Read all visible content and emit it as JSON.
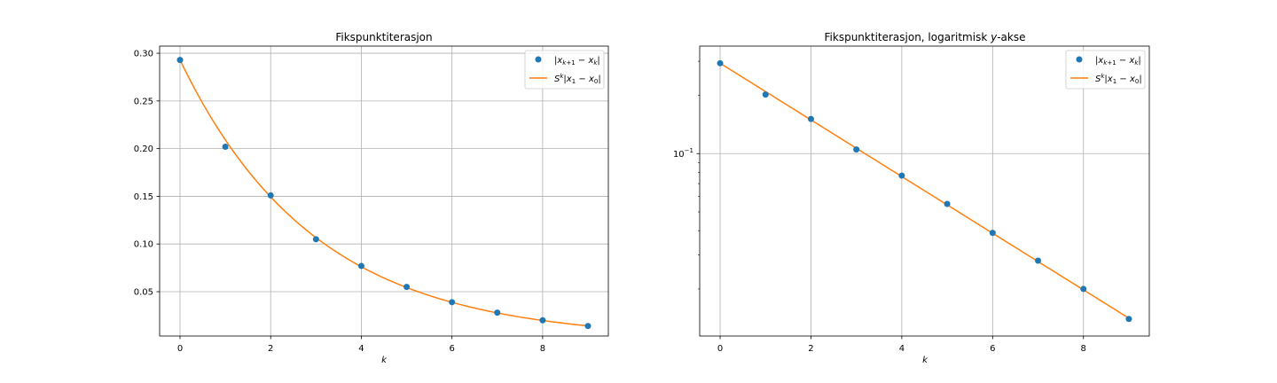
{
  "chart_data": [
    {
      "type": "line",
      "title": "Fikspunktiterasjon",
      "xlabel": "k",
      "ylabel": "",
      "yscale": "linear",
      "xlim": [
        -0.45,
        9.45
      ],
      "ylim": [
        0.0035,
        0.3075
      ],
      "xticks": [
        0,
        2,
        4,
        6,
        8
      ],
      "yticks": [
        0.05,
        0.1,
        0.15,
        0.2,
        0.25,
        0.3
      ],
      "ytick_labels": [
        "0.05",
        "0.10",
        "0.15",
        "0.20",
        "0.25",
        "0.30"
      ],
      "grid": true,
      "legend_position": "upper right",
      "series": [
        {
          "name": "|x_{k+1} - x_k|",
          "marker": "circle",
          "color": "#1f77b4",
          "x": [
            0,
            1,
            2,
            3,
            4,
            5,
            6,
            7,
            8,
            9
          ],
          "y": [
            0.293,
            0.202,
            0.151,
            0.105,
            0.077,
            0.055,
            0.039,
            0.028,
            0.02,
            0.014
          ]
        },
        {
          "name": "S^k |x_1 - x_0|",
          "marker": "none",
          "color": "#ff7f0e",
          "function": {
            "a": 0.293,
            "S": 0.714,
            "x0": 0,
            "x1": 9
          }
        }
      ]
    },
    {
      "type": "line",
      "title": "Fikspunktiterasjon, logaritmisk y-akse",
      "xlabel": "k",
      "ylabel": "",
      "yscale": "log",
      "xlim": [
        -0.45,
        9.45
      ],
      "ylim": [
        0.01143,
        0.3592
      ],
      "xticks": [
        0,
        2,
        4,
        6,
        8
      ],
      "yticks": [
        0.1
      ],
      "ytick_labels": [
        "10^{-1}"
      ],
      "yminor_ticks": [
        0.02,
        0.03,
        0.04,
        0.05,
        0.06,
        0.07,
        0.08,
        0.09,
        0.2,
        0.3
      ],
      "grid": true,
      "legend_position": "upper right",
      "series": [
        {
          "name": "|x_{k+1} - x_k|",
          "marker": "circle",
          "color": "#1f77b4",
          "x": [
            0,
            1,
            2,
            3,
            4,
            5,
            6,
            7,
            8,
            9
          ],
          "y": [
            0.293,
            0.202,
            0.151,
            0.105,
            0.077,
            0.055,
            0.039,
            0.028,
            0.02,
            0.014
          ]
        },
        {
          "name": "S^k |x_1 - x_0|",
          "marker": "none",
          "color": "#ff7f0e",
          "function": {
            "a": 0.293,
            "S": 0.714,
            "x0": 0,
            "x1": 9
          }
        }
      ]
    }
  ]
}
